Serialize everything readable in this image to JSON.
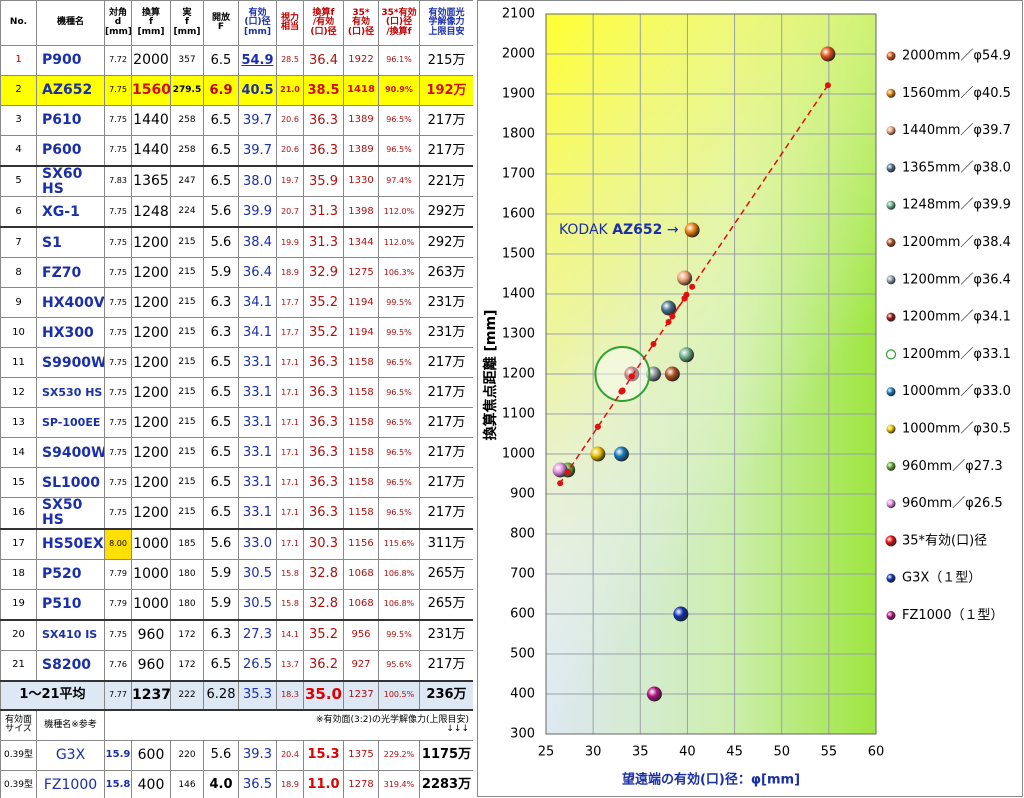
{
  "table": {
    "header": [
      "No.",
      "機種名",
      "対角\nd\n[mm]",
      "換算\nf\n[mm]",
      "実\nf\n[mm]",
      "開放\nF",
      "有効\n(口)径\n[mm]",
      "視力\n相当",
      "換算f\n/有効\n(口)径",
      "35*\n有効\n(口)径",
      "35*有効(口)径\n/換算f",
      "有効面光\n学解像力\n上限目安"
    ],
    "rows": [
      [
        "1",
        "P900",
        "7.72",
        "2000",
        "357",
        "6.5",
        "54.9",
        "28.5",
        "36.4",
        "1922",
        "96.1%",
        "215万"
      ],
      [
        "2",
        "AZ652",
        "7.75",
        "1560",
        "279.5",
        "6.9",
        "40.5",
        "21.0",
        "38.5",
        "1418",
        "90.9%",
        "192万"
      ],
      [
        "3",
        "P610",
        "7.75",
        "1440",
        "258",
        "6.5",
        "39.7",
        "20.6",
        "36.3",
        "1389",
        "96.5%",
        "217万"
      ],
      [
        "4",
        "P600",
        "7.75",
        "1440",
        "258",
        "6.5",
        "39.7",
        "20.6",
        "36.3",
        "1389",
        "96.5%",
        "217万"
      ],
      [
        "5",
        "SX60 HS",
        "7.83",
        "1365",
        "247",
        "6.5",
        "38.0",
        "19.7",
        "35.9",
        "1330",
        "97.4%",
        "221万"
      ],
      [
        "6",
        "XG-1",
        "7.75",
        "1248",
        "224",
        "5.6",
        "39.9",
        "20.7",
        "31.3",
        "1398",
        "112.0%",
        "292万"
      ],
      [
        "7",
        "S1",
        "7.75",
        "1200",
        "215",
        "5.6",
        "38.4",
        "19.9",
        "31.3",
        "1344",
        "112.0%",
        "292万"
      ],
      [
        "8",
        "FZ70",
        "7.75",
        "1200",
        "215",
        "5.9",
        "36.4",
        "18.9",
        "32.9",
        "1275",
        "106.3%",
        "263万"
      ],
      [
        "9",
        "HX400V",
        "7.75",
        "1200",
        "215",
        "6.3",
        "34.1",
        "17.7",
        "35.2",
        "1194",
        "99.5%",
        "231万"
      ],
      [
        "10",
        "HX300",
        "7.75",
        "1200",
        "215",
        "6.3",
        "34.1",
        "17.7",
        "35.2",
        "1194",
        "99.5%",
        "231万"
      ],
      [
        "11",
        "S9900W",
        "7.75",
        "1200",
        "215",
        "6.5",
        "33.1",
        "17.1",
        "36.3",
        "1158",
        "96.5%",
        "217万"
      ],
      [
        "12",
        "SX530 HS",
        "7.75",
        "1200",
        "215",
        "6.5",
        "33.1",
        "17.1",
        "36.3",
        "1158",
        "96.5%",
        "217万"
      ],
      [
        "13",
        "SP-100EE",
        "7.75",
        "1200",
        "215",
        "6.5",
        "33.1",
        "17.1",
        "36.3",
        "1158",
        "96.5%",
        "217万"
      ],
      [
        "14",
        "S9400W",
        "7.75",
        "1200",
        "215",
        "6.5",
        "33.1",
        "17.1",
        "36.3",
        "1158",
        "96.5%",
        "217万"
      ],
      [
        "15",
        "SL1000",
        "7.75",
        "1200",
        "215",
        "6.5",
        "33.1",
        "17.1",
        "36.3",
        "1158",
        "96.5%",
        "217万"
      ],
      [
        "16",
        "SX50 HS",
        "7.75",
        "1200",
        "215",
        "6.5",
        "33.1",
        "17.1",
        "36.3",
        "1158",
        "96.5%",
        "217万"
      ],
      [
        "17",
        "HS50EXR",
        "8.00",
        "1000",
        "185",
        "5.6",
        "33.0",
        "17.1",
        "30.3",
        "1156",
        "115.6%",
        "311万"
      ],
      [
        "18",
        "P520",
        "7.79",
        "1000",
        "180",
        "5.9",
        "30.5",
        "15.8",
        "32.8",
        "1068",
        "106.8%",
        "265万"
      ],
      [
        "19",
        "P510",
        "7.79",
        "1000",
        "180",
        "5.9",
        "30.5",
        "15.8",
        "32.8",
        "1068",
        "106.8%",
        "265万"
      ],
      [
        "20",
        "SX410 IS",
        "7.75",
        "960",
        "172",
        "6.3",
        "27.3",
        "14.1",
        "35.2",
        "956",
        "99.5%",
        "231万"
      ],
      [
        "21",
        "S8200",
        "7.76",
        "960",
        "172",
        "6.5",
        "26.5",
        "13.7",
        "36.2",
        "927",
        "95.6%",
        "217万"
      ]
    ],
    "average": [
      "1～21平均",
      "7.77",
      "1237",
      "222",
      "6.28",
      "35.3",
      "18.3",
      "35.0",
      "1237",
      "100.5%",
      "236万"
    ],
    "footer_header": [
      "有効面\nサイズ",
      "機種名※参考",
      "※有効面(3:2)の光学解像力(上限目安)\n↓↓↓"
    ],
    "footer_rows": [
      [
        "0.39型",
        "G3X",
        "15.9",
        "600",
        "220",
        "5.6",
        "39.3",
        "20.4",
        "15.3",
        "1375",
        "229.2%",
        "1175万"
      ],
      [
        "0.39型",
        "FZ1000",
        "15.8",
        "400",
        "146",
        "4.0",
        "36.5",
        "18.9",
        "11.0",
        "1278",
        "319.4%",
        "2283万"
      ]
    ]
  },
  "chart_data": {
    "type": "scatter",
    "xlabel": "望遠端の有効(口)径：φ[mm]",
    "ylabel": "換算焦点距離 [mm]",
    "annotation": {
      "brand": "KODAK",
      "model": "AZ652",
      "arrow": "→"
    },
    "xlim": [
      25,
      60
    ],
    "xticks": [
      25,
      30,
      35,
      40,
      45,
      50,
      55,
      60
    ],
    "ylim": [
      300,
      2100
    ],
    "yticks": [
      300,
      400,
      500,
      600,
      700,
      800,
      900,
      1000,
      1100,
      1200,
      1300,
      1400,
      1500,
      1600,
      1700,
      1800,
      1900,
      2000,
      2100
    ],
    "grid": true,
    "series": [
      {
        "name": "2000mm／φ54.9",
        "color": "#e0501a",
        "x": [
          54.9
        ],
        "values": [
          2000
        ]
      },
      {
        "name": "1560mm／φ40.5",
        "color": "#e88010",
        "x": [
          40.5
        ],
        "values": [
          1560
        ]
      },
      {
        "name": "1440mm／φ39.7",
        "color": "#f0a070",
        "x": [
          39.7
        ],
        "values": [
          1440
        ]
      },
      {
        "name": "1365mm／φ38.0",
        "color": "#4a7090",
        "x": [
          38.0
        ],
        "values": [
          1365
        ]
      },
      {
        "name": "1248mm／φ39.9",
        "color": "#70b090",
        "x": [
          39.9
        ],
        "values": [
          1248
        ]
      },
      {
        "name": "1200mm／φ38.4",
        "color": "#b05020",
        "x": [
          38.4
        ],
        "values": [
          1200
        ]
      },
      {
        "name": "1200mm／φ36.4",
        "color": "#9098a0",
        "x": [
          36.4
        ],
        "values": [
          1200
        ]
      },
      {
        "name": "1200mm／φ34.1",
        "color": "#a01818",
        "x": [
          34.1
        ],
        "values": [
          1200
        ]
      },
      {
        "name": "1200mm／φ33.1",
        "color": "#30a030",
        "x": [
          33.1
        ],
        "values": [
          1200
        ],
        "marker": "ring"
      },
      {
        "name": "1000mm／φ33.0",
        "color": "#1878b8",
        "x": [
          33.0
        ],
        "values": [
          1000
        ]
      },
      {
        "name": "1000mm／φ30.5",
        "color": "#e8c000",
        "x": [
          30.5
        ],
        "values": [
          1000
        ]
      },
      {
        "name": "960mm／φ27.3",
        "color": "#60a830",
        "x": [
          27.3
        ],
        "values": [
          960
        ]
      },
      {
        "name": "960mm／φ26.5",
        "color": "#e090e0",
        "x": [
          26.5
        ],
        "values": [
          960
        ]
      },
      {
        "name": "35*有効(口)径",
        "color": "#e01010",
        "line": "dashed",
        "x": [
          54.9,
          40.5,
          39.7,
          39.7,
          38.0,
          39.9,
          38.4,
          36.4,
          34.1,
          34.1,
          33.1,
          33.1,
          33.1,
          33.1,
          33.1,
          33.1,
          33.0,
          30.5,
          30.5,
          27.3,
          26.5
        ],
        "values": [
          1922,
          1418,
          1389,
          1389,
          1330,
          1398,
          1344,
          1275,
          1194,
          1194,
          1158,
          1158,
          1158,
          1158,
          1158,
          1158,
          1156,
          1068,
          1068,
          956,
          927
        ]
      },
      {
        "name": "G3X（１型）",
        "color": "#1030b0",
        "x": [
          39.3
        ],
        "values": [
          600
        ]
      },
      {
        "name": "FZ1000（１型）",
        "color": "#b01080",
        "x": [
          36.5
        ],
        "values": [
          400
        ]
      }
    ]
  }
}
